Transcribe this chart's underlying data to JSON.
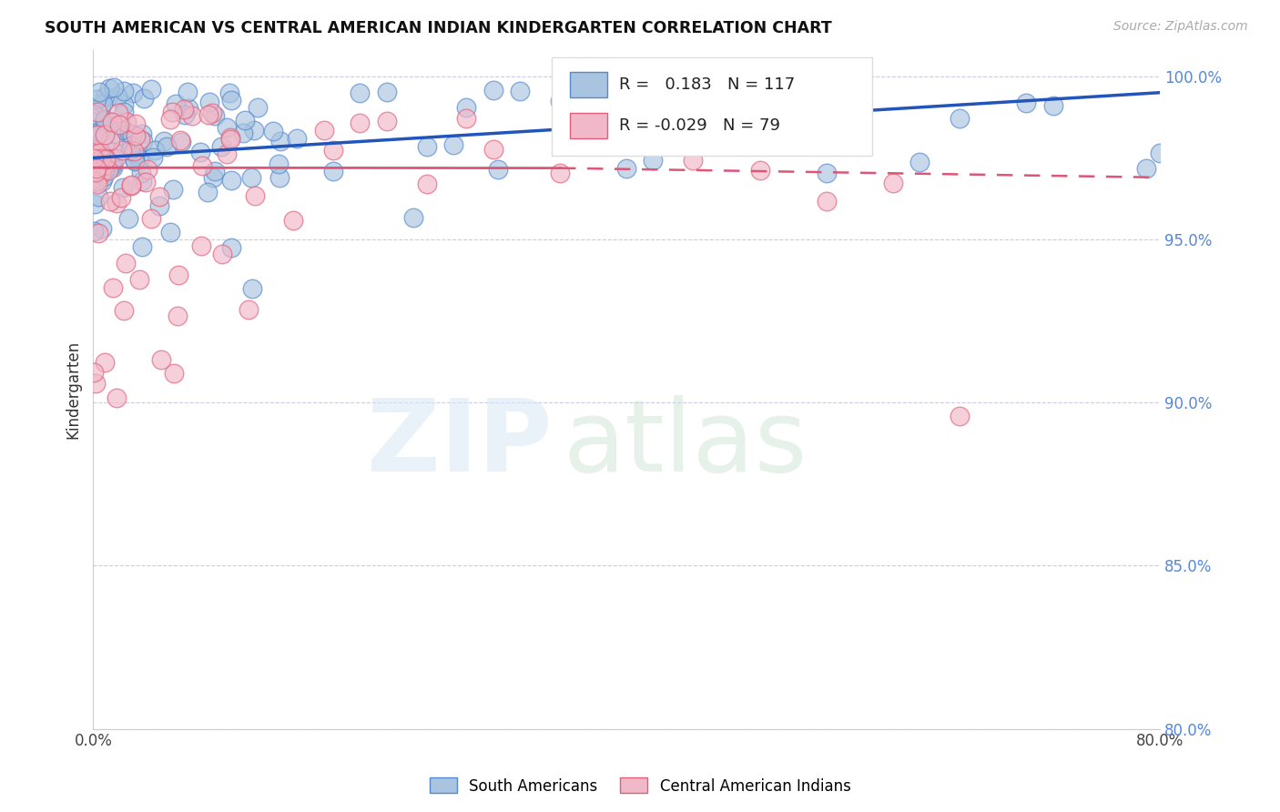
{
  "title": "SOUTH AMERICAN VS CENTRAL AMERICAN INDIAN KINDERGARTEN CORRELATION CHART",
  "source": "Source: ZipAtlas.com",
  "ylabel": "Kindergarten",
  "blue_color": "#a8c4e0",
  "blue_edge_color": "#5588cc",
  "pink_color": "#f0b8c8",
  "pink_edge_color": "#e0607a",
  "blue_line_color": "#2255bb",
  "pink_line_color": "#dd5577",
  "xlim": [
    0.0,
    0.8
  ],
  "ylim": [
    0.8,
    1.008
  ],
  "yticks": [
    0.8,
    0.85,
    0.9,
    0.95,
    1.0
  ],
  "ytick_labels": [
    "80.0%",
    "85.0%",
    "90.0%",
    "95.0%",
    "100.0%"
  ],
  "blue_trendline": [
    0.0,
    0.8,
    0.975,
    0.995
  ],
  "pink_trendline": [
    0.0,
    0.8,
    0.972,
    0.969
  ],
  "legend_r_blue": "R =  0.183",
  "legend_n_blue": "N = 117",
  "legend_r_pink": "R = -0.029",
  "legend_n_pink": "N = 79"
}
